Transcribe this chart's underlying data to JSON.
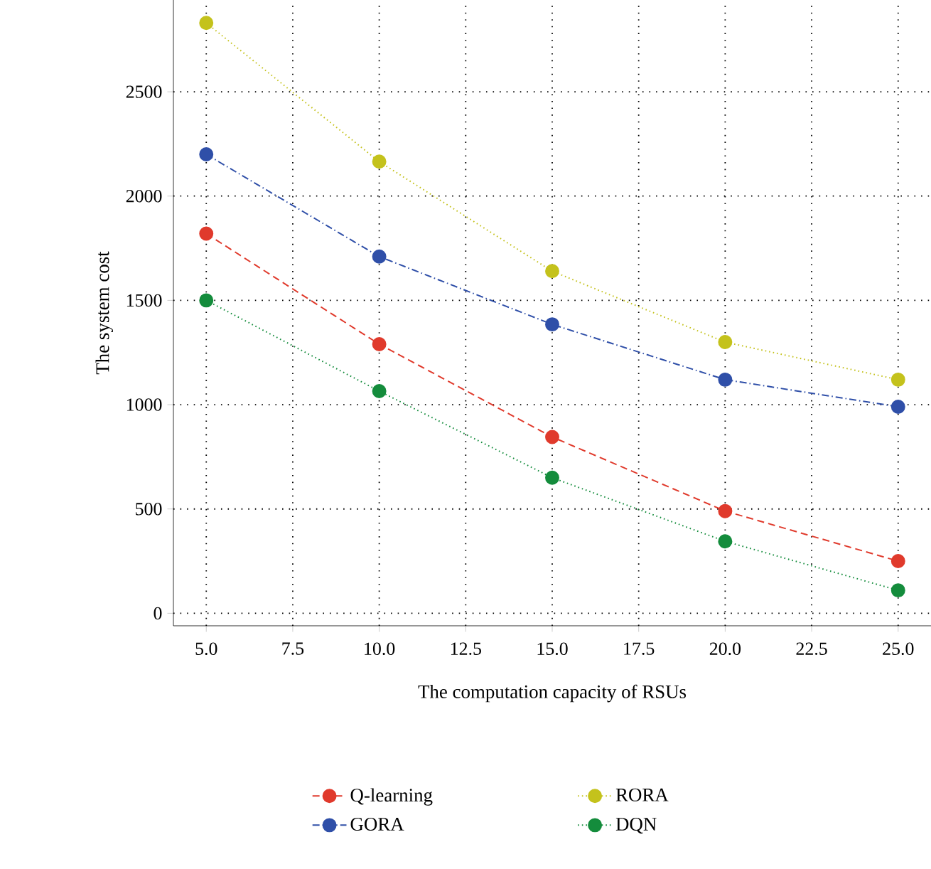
{
  "chart_data": {
    "type": "line",
    "xlabel": "The computation capacity of RSUs",
    "ylabel": "The system cost",
    "x": [
      5,
      10,
      15,
      20,
      25
    ],
    "series": [
      {
        "name": "Q-learning",
        "color": "#e03a2c",
        "line_style": "dashed",
        "values": [
          1820,
          1290,
          845,
          490,
          250
        ]
      },
      {
        "name": "RORA",
        "color": "#c4c21c",
        "line_style": "dotted",
        "values": [
          2830,
          2165,
          1640,
          1300,
          1120
        ]
      },
      {
        "name": "GORA",
        "color": "#2f4fa8",
        "line_style": "dashdot",
        "values": [
          2200,
          1710,
          1385,
          1120,
          990
        ]
      },
      {
        "name": "DQN",
        "color": "#148c3c",
        "line_style": "dotted",
        "values": [
          1500,
          1065,
          650,
          345,
          110
        ]
      }
    ],
    "xlim": [
      4.05,
      25.95
    ],
    "ylim": [
      -60,
      2940
    ],
    "xticks": [
      {
        "value": 5,
        "label": "5.0"
      },
      {
        "value": 7.5,
        "label": "7.5"
      },
      {
        "value": 10,
        "label": "10.0"
      },
      {
        "value": 12.5,
        "label": "12.5"
      },
      {
        "value": 15,
        "label": "15.0"
      },
      {
        "value": 17.5,
        "label": "17.5"
      },
      {
        "value": 20,
        "label": "20.0"
      },
      {
        "value": 22.5,
        "label": "22.5"
      },
      {
        "value": 25,
        "label": "25.0"
      }
    ],
    "yticks": [
      0,
      500,
      1000,
      1500,
      2000,
      2500
    ],
    "grid": true,
    "legend": "bottom",
    "marker": "circle"
  }
}
